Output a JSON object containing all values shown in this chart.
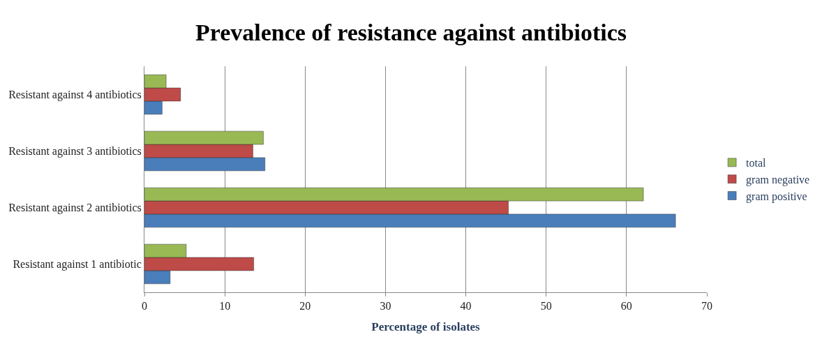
{
  "chart_data": {
    "type": "bar",
    "orientation": "horizontal",
    "title": "Prevalence of resistance against antibiotics",
    "xlabel": "Percentage of isolates",
    "categories": [
      "Resistant against 4 antibiotics",
      "Resistant against 3 antibiotics",
      "Resistant against 2 antibiotics",
      "Resistant against 1 antibiotic"
    ],
    "series": [
      {
        "name": "gram positive",
        "color": "#4a7ebb",
        "values": [
          2.2,
          15.0,
          66.1,
          3.2
        ]
      },
      {
        "name": "gram negative",
        "color": "#be4b48",
        "values": [
          4.5,
          13.5,
          45.3,
          13.6
        ]
      },
      {
        "name": "total",
        "color": "#98b954",
        "values": [
          2.7,
          14.8,
          62.1,
          5.2
        ]
      }
    ],
    "xlim": [
      0,
      70
    ],
    "xticks": [
      0,
      10,
      20,
      30,
      40,
      50,
      60,
      70
    ],
    "grid": "x",
    "legend": "right"
  }
}
